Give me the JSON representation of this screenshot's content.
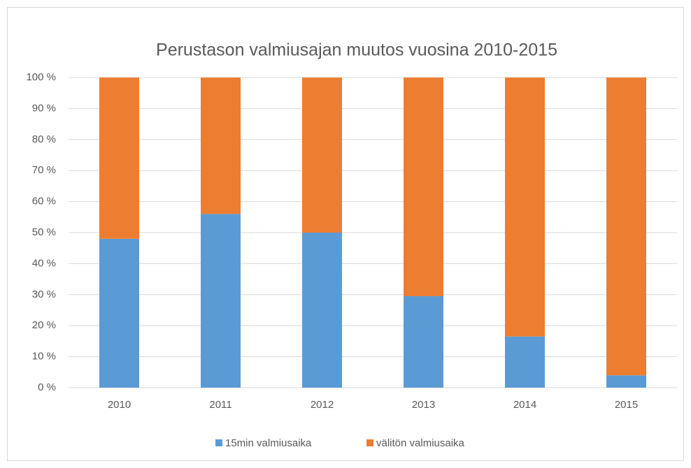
{
  "chart_data": {
    "type": "bar",
    "stacked": true,
    "title": "Perustason valmiusajan muutos vuosina 2010-2015",
    "categories": [
      "2010",
      "2011",
      "2012",
      "2013",
      "2014",
      "2015"
    ],
    "series": [
      {
        "name": "15min valmiusaika",
        "color": "#5b9bd5",
        "values": [
          48,
          56,
          50,
          29.5,
          16.5,
          4
        ]
      },
      {
        "name": "välitön valmiusaika",
        "color": "#ed7d31",
        "values": [
          52,
          44,
          50,
          70.5,
          83.5,
          96
        ]
      }
    ],
    "ylim": [
      0,
      100
    ],
    "yticks": [
      {
        "value": 0,
        "label": "0 %"
      },
      {
        "value": 10,
        "label": "10 %"
      },
      {
        "value": 20,
        "label": "20 %"
      },
      {
        "value": 30,
        "label": "30 %"
      },
      {
        "value": 40,
        "label": "40 %"
      },
      {
        "value": 50,
        "label": "50 %"
      },
      {
        "value": 60,
        "label": "60 %"
      },
      {
        "value": 70,
        "label": "70 %"
      },
      {
        "value": 80,
        "label": "80 %"
      },
      {
        "value": 90,
        "label": "90 %"
      },
      {
        "value": 100,
        "label": "100 %"
      }
    ],
    "grid": true,
    "legend": "bottom"
  }
}
